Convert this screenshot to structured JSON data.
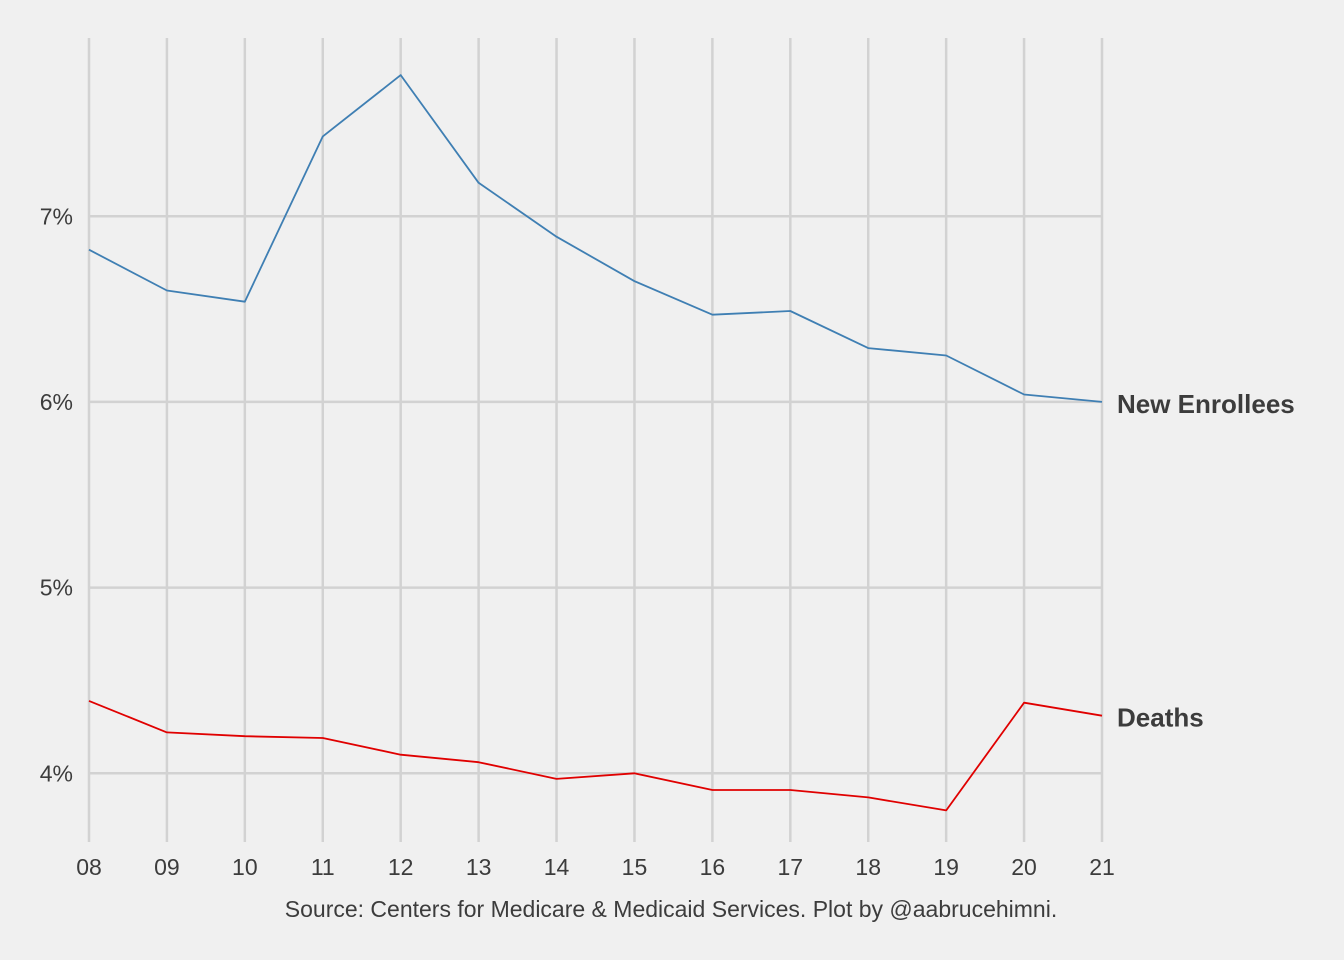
{
  "chart_data": {
    "type": "line",
    "title": "",
    "xlabel": "",
    "ylabel": "",
    "x": [
      "08",
      "09",
      "10",
      "11",
      "12",
      "13",
      "14",
      "15",
      "16",
      "17",
      "18",
      "19",
      "20",
      "21"
    ],
    "ylim": [
      3.63,
      7.96
    ],
    "yticks": [
      4,
      5,
      6,
      7
    ],
    "ytick_labels": [
      "4%",
      "5%",
      "6%",
      "7%"
    ],
    "y_unit": "%",
    "grid": true,
    "legend": "direct labels at right end of lines",
    "series": [
      {
        "name": "New Enrollees",
        "color": "#3f7fb3",
        "values": [
          6.82,
          6.6,
          6.54,
          7.43,
          7.76,
          7.18,
          6.89,
          6.65,
          6.47,
          6.49,
          6.29,
          6.25,
          6.04,
          6.0
        ]
      },
      {
        "name": "Deaths",
        "color": "#e00000",
        "values": [
          4.39,
          4.22,
          4.2,
          4.19,
          4.1,
          4.06,
          3.97,
          4.0,
          3.91,
          3.91,
          3.87,
          3.8,
          4.38,
          4.31
        ]
      }
    ],
    "caption": "Source: Centers for Medicare & Medicaid Services. Plot by @aabrucehimni."
  },
  "colors": {
    "background": "#f0f0f0",
    "grid": "#d2d2d2",
    "text": "#3c3c3c"
  }
}
